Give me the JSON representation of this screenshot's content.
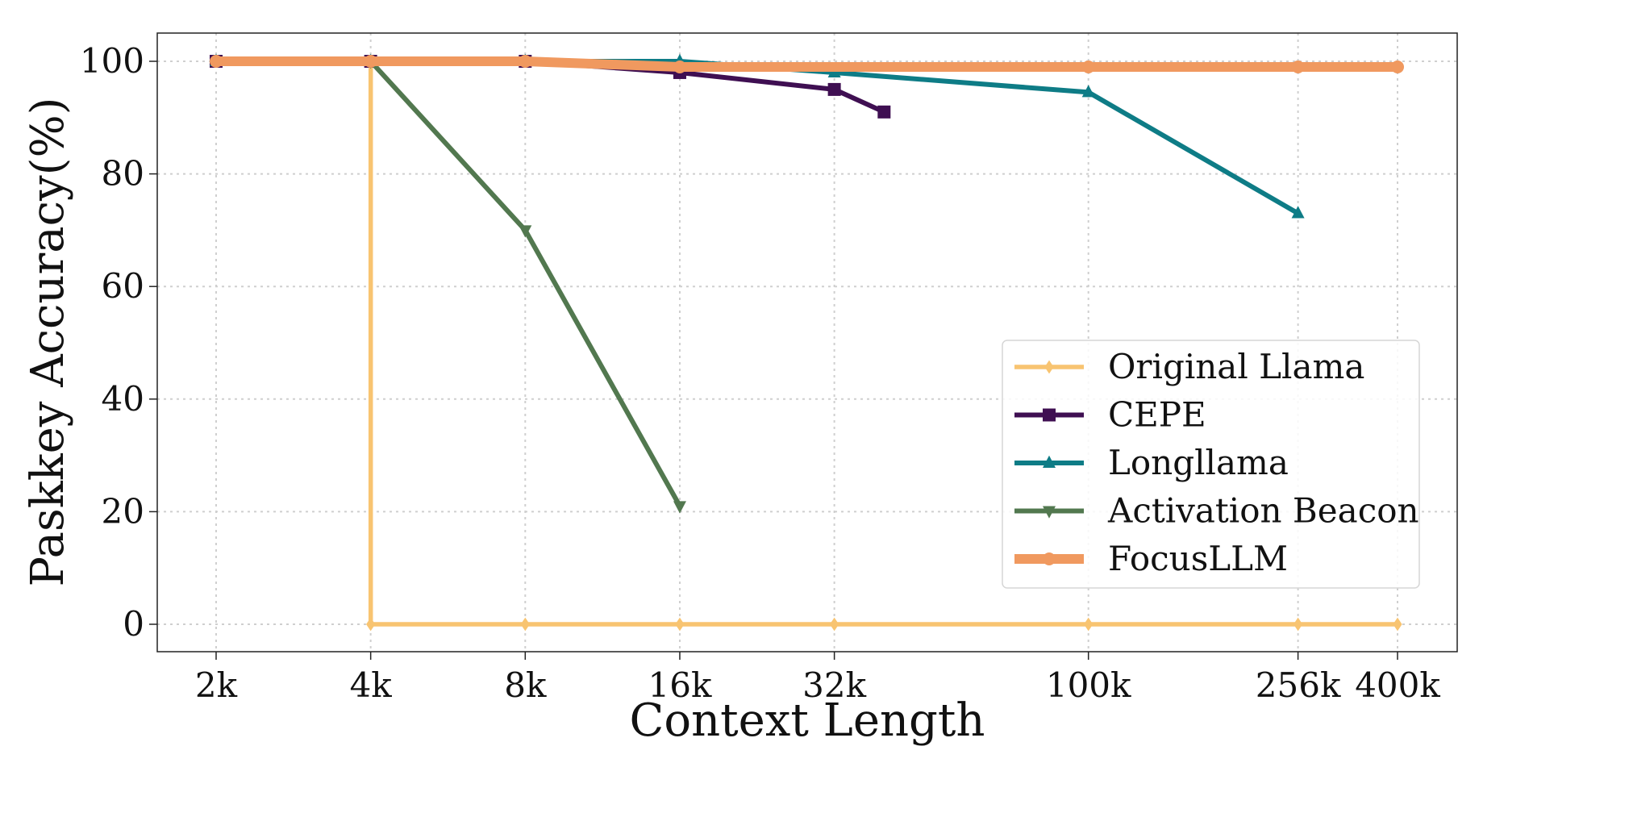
{
  "chart_data": {
    "type": "line",
    "title": "",
    "xlabel": "Context Length",
    "ylabel": "Paskkey Accuracy(%)",
    "x_ticks": [
      "2k",
      "4k",
      "8k",
      "16k",
      "32k",
      "100k",
      "256k",
      "400k"
    ],
    "y_ticks": [
      0,
      20,
      40,
      60,
      80,
      100
    ],
    "ylim": [
      -5,
      105
    ],
    "x_scale": "log",
    "grid": true,
    "legend_position": "lower-right",
    "series": [
      {
        "name": "Original Llama",
        "color": "#F8C471",
        "marker": "diamond",
        "points": [
          {
            "x": 2000,
            "y": 100
          },
          {
            "x": 4000,
            "y": 100
          },
          {
            "x": 4000,
            "y": 0
          },
          {
            "x": 8000,
            "y": 0
          },
          {
            "x": 16000,
            "y": 0
          },
          {
            "x": 32000,
            "y": 0
          },
          {
            "x": 100000,
            "y": 0
          },
          {
            "x": 256000,
            "y": 0
          },
          {
            "x": 400000,
            "y": 0
          }
        ]
      },
      {
        "name": "CEPE",
        "color": "#3F0F52",
        "marker": "square",
        "points": [
          {
            "x": 2000,
            "y": 100
          },
          {
            "x": 4000,
            "y": 100
          },
          {
            "x": 8000,
            "y": 100
          },
          {
            "x": 16000,
            "y": 98
          },
          {
            "x": 32000,
            "y": 95
          },
          {
            "x": 40000,
            "y": 91
          }
        ]
      },
      {
        "name": "Longllama",
        "color": "#0E7C86",
        "marker": "triangle-up",
        "points": [
          {
            "x": 2000,
            "y": 100
          },
          {
            "x": 4000,
            "y": 100
          },
          {
            "x": 8000,
            "y": 100
          },
          {
            "x": 16000,
            "y": 100
          },
          {
            "x": 32000,
            "y": 98
          },
          {
            "x": 100000,
            "y": 94.5
          },
          {
            "x": 256000,
            "y": 73
          }
        ]
      },
      {
        "name": "Activation Beacon",
        "color": "#52784F",
        "marker": "triangle-down",
        "points": [
          {
            "x": 4000,
            "y": 100
          },
          {
            "x": 8000,
            "y": 70
          },
          {
            "x": 16000,
            "y": 21
          }
        ]
      },
      {
        "name": "FocusLLM",
        "color": "#F0995F",
        "marker": "circle",
        "points": [
          {
            "x": 2000,
            "y": 100
          },
          {
            "x": 4000,
            "y": 100
          },
          {
            "x": 8000,
            "y": 100
          },
          {
            "x": 16000,
            "y": 99
          },
          {
            "x": 100000,
            "y": 99
          },
          {
            "x": 256000,
            "y": 99
          },
          {
            "x": 400000,
            "y": 99
          }
        ]
      }
    ]
  }
}
